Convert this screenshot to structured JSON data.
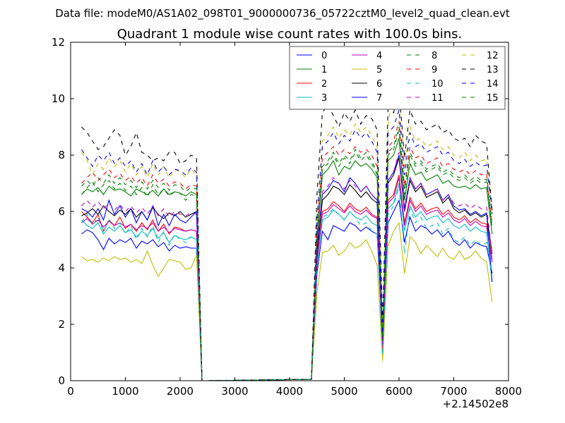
{
  "chart_data": {
    "type": "line",
    "suptitle": "Data file: modeM0/AS1A02_098T01_9000000736_05722cztM0_level2_quad_clean.evt",
    "title": "Quadrant 1 module wise count rates with 100.0s bins.",
    "xlabel": "",
    "ylabel": "",
    "x_offset_label": "+2.14502e8",
    "xlim": [
      0,
      8000
    ],
    "ylim": [
      0,
      12
    ],
    "x_ticks": [
      "0",
      "1000",
      "2000",
      "3000",
      "4000",
      "5000",
      "6000",
      "7000",
      "8000"
    ],
    "y_ticks": [
      "0",
      "2",
      "4",
      "6",
      "8",
      "10",
      "12"
    ],
    "x": [
      200,
      300,
      400,
      500,
      600,
      700,
      800,
      900,
      1000,
      1100,
      1200,
      1300,
      1400,
      1500,
      1600,
      1700,
      1800,
      1900,
      2000,
      2100,
      2200,
      2300,
      2400,
      2500,
      4400,
      4500,
      4600,
      4700,
      4800,
      4900,
      5000,
      5100,
      5200,
      5300,
      5400,
      5500,
      5600,
      5700,
      5800,
      5900,
      6000,
      6100,
      6200,
      6300,
      6400,
      6500,
      6600,
      6700,
      6800,
      6900,
      7000,
      7100,
      7200,
      7300,
      7400,
      7500,
      7600,
      7700
    ],
    "legend_position": "top-right",
    "series": [
      {
        "name": "0",
        "color": "#0000ff",
        "style": "solid",
        "values": [
          5.2,
          5.35,
          5.25,
          5.0,
          4.65,
          5.05,
          4.85,
          5.0,
          4.9,
          5.05,
          4.7,
          4.95,
          4.85,
          5.0,
          4.75,
          4.9,
          4.6,
          4.8,
          4.7,
          4.75,
          4.7,
          4.7,
          0,
          0,
          0.05,
          3.8,
          5.3,
          5.0,
          5.5,
          5.4,
          5.3,
          5.6,
          5.5,
          5.3,
          5.45,
          5.3,
          5.2,
          1.3,
          5.6,
          6.0,
          6.4,
          4.9,
          5.8,
          5.3,
          5.5,
          5.4,
          5.2,
          5.35,
          5.1,
          5.3,
          4.95,
          4.8,
          5.0,
          4.7,
          4.9,
          4.8,
          4.75,
          3.8
        ]
      },
      {
        "name": "1",
        "color": "#008000",
        "style": "solid",
        "values": [
          6.6,
          6.8,
          6.7,
          6.85,
          6.6,
          6.9,
          6.75,
          6.8,
          6.7,
          6.55,
          6.8,
          6.7,
          6.6,
          6.75,
          6.55,
          6.8,
          6.6,
          6.7,
          6.65,
          6.55,
          6.7,
          6.6,
          0,
          0,
          0.05,
          4.9,
          7.3,
          7.5,
          7.8,
          7.3,
          7.6,
          7.5,
          7.8,
          7.6,
          7.7,
          7.5,
          7.2,
          1.2,
          7.8,
          8.0,
          8.6,
          6.4,
          7.7,
          7.3,
          7.4,
          7.1,
          7.2,
          7.3,
          7.0,
          7.1,
          6.9,
          6.85,
          6.9,
          6.8,
          6.95,
          6.8,
          6.85,
          5.2
        ]
      },
      {
        "name": "2",
        "color": "#ff0000",
        "style": "solid",
        "values": [
          6.0,
          5.8,
          5.6,
          5.9,
          5.3,
          5.7,
          5.5,
          5.8,
          5.4,
          5.55,
          5.3,
          5.6,
          5.35,
          5.7,
          5.3,
          5.55,
          5.2,
          5.45,
          5.4,
          5.3,
          5.35,
          5.3,
          0,
          0,
          0.05,
          4.3,
          6.0,
          6.1,
          6.35,
          6.2,
          6.0,
          6.3,
          6.1,
          6.0,
          6.15,
          5.9,
          5.8,
          1.0,
          6.4,
          6.6,
          7.3,
          5.6,
          6.5,
          6.1,
          6.3,
          6.0,
          6.1,
          6.15,
          5.9,
          6.05,
          5.8,
          5.7,
          5.85,
          5.6,
          5.75,
          5.6,
          5.55,
          4.3
        ]
      },
      {
        "name": "3",
        "color": "#00bfbf",
        "style": "solid",
        "values": [
          5.7,
          5.5,
          5.4,
          5.6,
          5.2,
          5.45,
          5.3,
          5.5,
          5.25,
          5.35,
          5.1,
          5.3,
          5.15,
          5.4,
          5.05,
          5.25,
          4.9,
          5.15,
          5.05,
          5.0,
          5.1,
          5.0,
          0,
          0,
          0.05,
          4.1,
          5.7,
          5.8,
          6.05,
          5.9,
          5.7,
          6.0,
          5.8,
          5.7,
          5.85,
          5.6,
          5.5,
          0.9,
          6.1,
          6.3,
          7.0,
          5.3,
          6.2,
          5.8,
          6.0,
          5.7,
          5.8,
          5.85,
          5.6,
          5.75,
          5.5,
          5.4,
          5.55,
          5.3,
          5.45,
          5.3,
          5.25,
          3.5
        ]
      },
      {
        "name": "4",
        "color": "#bf00bf",
        "style": "solid",
        "values": [
          5.6,
          5.75,
          5.55,
          5.7,
          5.45,
          5.65,
          5.5,
          5.6,
          5.45,
          5.55,
          5.35,
          5.5,
          5.4,
          5.6,
          5.3,
          5.45,
          5.25,
          5.4,
          5.35,
          5.3,
          5.35,
          5.3,
          0,
          0,
          0.05,
          4.2,
          5.9,
          6.0,
          6.25,
          6.1,
          5.95,
          6.2,
          6.0,
          5.9,
          6.05,
          5.85,
          5.75,
          1.1,
          6.3,
          6.5,
          7.2,
          5.5,
          6.4,
          6.0,
          6.2,
          5.9,
          6.0,
          6.05,
          5.8,
          5.95,
          5.7,
          5.6,
          5.75,
          5.5,
          5.65,
          5.5,
          5.45,
          4.2
        ]
      },
      {
        "name": "5",
        "color": "#bfbf00",
        "style": "solid",
        "values": [
          4.4,
          4.25,
          4.3,
          4.2,
          4.35,
          4.25,
          4.4,
          4.3,
          4.35,
          4.2,
          4.3,
          4.15,
          4.6,
          4.1,
          3.7,
          4.0,
          4.3,
          4.25,
          4.2,
          3.95,
          4.0,
          4.45,
          0,
          0,
          0.05,
          3.1,
          4.55,
          4.6,
          4.8,
          4.45,
          4.6,
          4.9,
          4.7,
          4.8,
          5.0,
          4.6,
          4.1,
          0.7,
          4.8,
          5.3,
          5.6,
          3.8,
          5.1,
          4.9,
          4.5,
          4.8,
          4.6,
          4.4,
          4.7,
          4.4,
          4.3,
          4.6,
          4.3,
          4.4,
          4.6,
          4.35,
          4.2,
          2.8
        ]
      },
      {
        "name": "6",
        "color": "#000000",
        "style": "solid",
        "values": [
          5.85,
          5.95,
          6.1,
          5.9,
          6.2,
          6.0,
          5.85,
          6.05,
          5.9,
          6.1,
          5.8,
          6.0,
          5.7,
          6.15,
          5.9,
          5.75,
          5.95,
          5.85,
          6.0,
          5.8,
          5.9,
          6.0,
          0,
          0,
          0.05,
          4.5,
          6.4,
          6.6,
          6.9,
          6.8,
          6.6,
          6.95,
          6.75,
          6.5,
          6.7,
          6.45,
          6.3,
          1.4,
          7.0,
          7.3,
          7.9,
          6.0,
          7.1,
          6.7,
          6.9,
          6.5,
          6.6,
          6.7,
          6.3,
          6.5,
          6.1,
          5.95,
          6.05,
          5.85,
          5.95,
          5.8,
          5.9,
          4.5
        ]
      },
      {
        "name": "7",
        "color": "#0000ff",
        "style": "solid",
        "values": [
          6.1,
          6.0,
          5.8,
          6.1,
          5.7,
          6.4,
          5.9,
          6.2,
          5.8,
          6.1,
          5.6,
          6.0,
          5.7,
          6.2,
          5.5,
          5.9,
          5.5,
          5.9,
          5.7,
          5.6,
          5.8,
          6.0,
          0,
          0,
          0.05,
          4.7,
          6.6,
          6.8,
          7.1,
          7.0,
          6.7,
          7.2,
          7.0,
          6.7,
          6.9,
          6.6,
          6.4,
          1.5,
          7.1,
          7.4,
          8.0,
          6.1,
          7.2,
          6.8,
          7.0,
          6.6,
          6.7,
          6.8,
          6.4,
          6.6,
          6.2,
          6.05,
          6.1,
          5.9,
          6.0,
          5.85,
          5.95,
          3.5
        ]
      },
      {
        "name": "8",
        "color": "#008000",
        "style": "dashed",
        "values": [
          6.6,
          6.85,
          7.05,
          6.7,
          6.95,
          7.1,
          6.8,
          7.0,
          6.75,
          6.9,
          6.6,
          6.85,
          6.5,
          6.95,
          6.6,
          6.8,
          6.55,
          6.7,
          6.65,
          6.4,
          6.6,
          6.55,
          0,
          0,
          0.05,
          5.1,
          7.5,
          7.7,
          8.0,
          7.6,
          7.9,
          7.7,
          8.1,
          7.8,
          8.0,
          7.7,
          7.3,
          1.4,
          8.0,
          8.2,
          8.9,
          6.6,
          8.0,
          7.6,
          7.7,
          7.4,
          7.5,
          7.6,
          7.3,
          7.4,
          7.2,
          7.1,
          7.2,
          7.0,
          7.15,
          7.0,
          7.05,
          5.4
        ]
      },
      {
        "name": "9",
        "color": "#ff0000",
        "style": "dashed",
        "values": [
          7.0,
          7.2,
          7.4,
          7.1,
          7.3,
          7.5,
          7.2,
          7.35,
          7.1,
          7.25,
          7.0,
          7.2,
          6.9,
          7.3,
          7.0,
          7.15,
          6.9,
          7.05,
          7.0,
          6.8,
          6.95,
          6.9,
          0,
          0,
          0.05,
          5.4,
          7.9,
          8.1,
          8.3,
          8.0,
          8.2,
          8.05,
          8.3,
          8.1,
          8.2,
          8.0,
          7.6,
          1.6,
          8.3,
          8.5,
          9.2,
          6.9,
          8.3,
          7.9,
          8.0,
          7.7,
          7.8,
          7.9,
          7.6,
          7.7,
          7.5,
          7.4,
          7.5,
          7.3,
          7.45,
          7.3,
          7.35,
          5.6
        ]
      },
      {
        "name": "10",
        "color": "#00bfbf",
        "style": "dashed",
        "values": [
          5.6,
          5.9,
          5.5,
          5.8,
          5.3,
          5.7,
          5.4,
          5.6,
          5.2,
          5.5,
          5.0,
          5.4,
          5.1,
          5.5,
          4.9,
          5.3,
          4.8,
          5.2,
          5.0,
          4.9,
          5.1,
          5.0,
          0,
          0,
          0.05,
          4.0,
          5.8,
          5.9,
          6.1,
          5.9,
          5.7,
          6.0,
          5.8,
          5.5,
          5.6,
          5.3,
          5.2,
          0.9,
          5.9,
          6.2,
          6.9,
          4.5,
          6.1,
          5.6,
          5.8,
          5.4,
          5.5,
          5.6,
          5.2,
          5.4,
          5.0,
          4.9,
          5.1,
          4.8,
          5.0,
          4.8,
          4.9,
          3.7
        ]
      },
      {
        "name": "11",
        "color": "#bf00bf",
        "style": "dashed",
        "values": [
          6.2,
          6.4,
          6.15,
          6.35,
          6.1,
          6.3,
          6.05,
          6.25,
          6.0,
          6.2,
          5.95,
          6.15,
          5.9,
          6.2,
          5.85,
          6.1,
          5.8,
          6.0,
          5.9,
          5.85,
          5.95,
          5.9,
          0,
          0,
          0.05,
          4.6,
          6.7,
          6.9,
          7.2,
          7.0,
          6.8,
          7.1,
          6.9,
          6.7,
          6.9,
          6.6,
          6.5,
          1.3,
          7.1,
          7.4,
          8.1,
          6.0,
          7.2,
          6.8,
          7.0,
          6.6,
          6.7,
          6.8,
          6.4,
          6.6,
          6.3,
          6.2,
          6.3,
          6.1,
          6.25,
          6.1,
          6.15,
          4.5
        ]
      },
      {
        "name": "12",
        "color": "#bfbf00",
        "style": "dashed",
        "values": [
          8.1,
          7.8,
          7.3,
          7.7,
          7.5,
          7.9,
          7.6,
          7.8,
          7.4,
          7.7,
          7.3,
          7.6,
          7.2,
          7.7,
          7.3,
          7.6,
          7.2,
          7.5,
          7.4,
          7.2,
          7.5,
          7.3,
          0,
          0,
          0.05,
          5.8,
          8.5,
          8.7,
          9.0,
          8.6,
          8.9,
          8.7,
          9.1,
          8.8,
          9.0,
          8.7,
          8.3,
          1.8,
          9.0,
          10.6,
          9.8,
          7.6,
          9.0,
          8.5,
          8.6,
          8.3,
          8.4,
          8.5,
          8.2,
          8.3,
          8.0,
          7.9,
          8.1,
          7.8,
          8.0,
          7.8,
          7.85,
          6.1
        ]
      },
      {
        "name": "13",
        "color": "#000000",
        "style": "dashed",
        "values": [
          9.0,
          8.8,
          8.5,
          8.2,
          8.3,
          8.6,
          8.9,
          8.7,
          8.0,
          8.3,
          8.8,
          8.1,
          8.0,
          7.8,
          7.9,
          7.8,
          8.1,
          8.1,
          7.7,
          7.8,
          8.0,
          7.9,
          0,
          0,
          0.05,
          6.6,
          9.5,
          9.8,
          9.4,
          9.0,
          9.5,
          9.2,
          9.6,
          9.1,
          9.4,
          9.3,
          8.9,
          2.1,
          9.8,
          9.5,
          10.3,
          7.9,
          9.6,
          9.1,
          9.2,
          8.9,
          9.0,
          9.1,
          8.8,
          8.9,
          8.6,
          8.5,
          8.6,
          8.3,
          8.7,
          8.5,
          8.4,
          6.0
        ]
      },
      {
        "name": "14",
        "color": "#0000ff",
        "style": "dashed",
        "values": [
          8.2,
          7.9,
          7.6,
          8.0,
          7.8,
          8.1,
          7.7,
          7.9,
          7.6,
          7.8,
          7.4,
          7.7,
          7.3,
          7.8,
          7.4,
          7.6,
          7.3,
          7.5,
          7.45,
          7.3,
          7.55,
          7.4,
          0,
          0,
          0.05,
          5.7,
          8.3,
          8.5,
          8.8,
          8.4,
          8.7,
          8.5,
          8.9,
          8.6,
          8.8,
          8.5,
          8.1,
          1.7,
          8.8,
          9.0,
          9.6,
          7.3,
          8.8,
          8.3,
          8.4,
          8.1,
          8.2,
          8.3,
          8.0,
          8.1,
          7.8,
          7.7,
          7.85,
          7.6,
          7.75,
          7.6,
          7.65,
          5.9
        ]
      },
      {
        "name": "15",
        "color": "#008000",
        "style": "dashed",
        "values": [
          6.9,
          7.1,
          6.9,
          7.2,
          7.0,
          7.3,
          7.0,
          7.2,
          6.95,
          7.1,
          6.85,
          7.05,
          6.8,
          7.1,
          6.85,
          7.0,
          6.75,
          6.95,
          6.9,
          6.7,
          6.85,
          6.8,
          0,
          0,
          0.05,
          5.2,
          7.6,
          7.8,
          8.1,
          7.7,
          8.0,
          7.8,
          8.2,
          7.9,
          8.1,
          7.8,
          7.4,
          1.5,
          8.1,
          8.3,
          9.0,
          6.8,
          8.1,
          7.7,
          7.8,
          7.5,
          7.6,
          7.7,
          7.4,
          7.5,
          7.3,
          7.2,
          7.3,
          7.1,
          7.25,
          7.1,
          7.15,
          5.5
        ]
      }
    ]
  }
}
